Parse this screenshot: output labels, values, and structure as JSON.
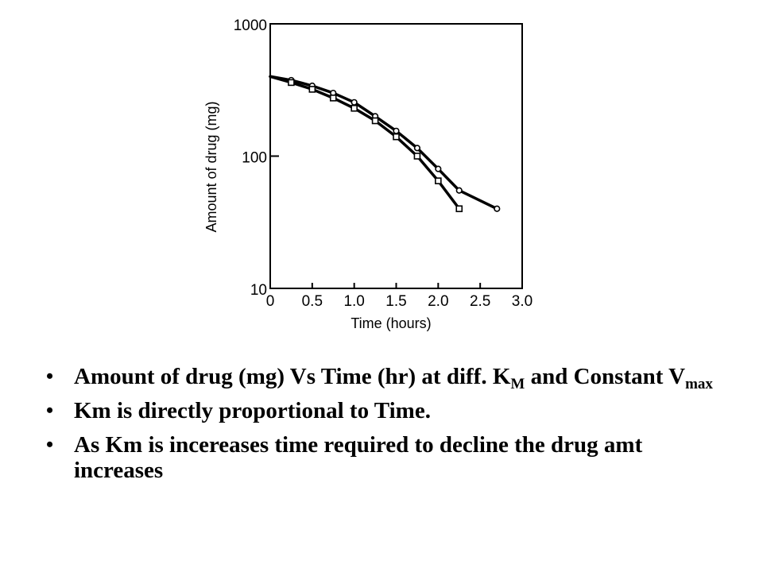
{
  "chart_data": {
    "type": "line",
    "xlabel": "Time (hours)",
    "ylabel": "Amount of drug (mg)",
    "x_ticks": [
      "0",
      "0.5",
      "1.0",
      "1.5",
      "2.0",
      "2.5",
      "3.0"
    ],
    "y_ticks": [
      "10",
      "100",
      "1000"
    ],
    "xlim": [
      0,
      3.0
    ],
    "ylim": [
      10,
      1000
    ],
    "y_scale": "log",
    "grid": false,
    "series": [
      {
        "marker": "circle",
        "x": [
          0,
          0.25,
          0.5,
          0.75,
          1.0,
          1.25,
          1.5,
          1.75,
          2.0,
          2.25,
          2.7
        ],
        "y": [
          400,
          375,
          340,
          300,
          255,
          200,
          155,
          115,
          80,
          55,
          40
        ]
      },
      {
        "marker": "square",
        "x": [
          0,
          0.25,
          0.5,
          0.75,
          1.0,
          1.25,
          1.5,
          1.75,
          2.0,
          2.25
        ],
        "y": [
          400,
          360,
          320,
          275,
          230,
          185,
          140,
          100,
          65,
          40
        ]
      }
    ]
  },
  "bullets": [
    {
      "segments": [
        {
          "text": "Amount of drug (mg) Vs Time (hr) at diff. K"
        },
        {
          "text": "M",
          "sub": true
        },
        {
          "text": " and Constant V"
        },
        {
          "text": "max",
          "sub": true
        }
      ]
    },
    {
      "segments": [
        {
          "text": "Km is directly proportional to Time."
        }
      ]
    },
    {
      "segments": [
        {
          "text": "As Km is   incereases time required to decline the drug amt  increases"
        }
      ]
    }
  ]
}
